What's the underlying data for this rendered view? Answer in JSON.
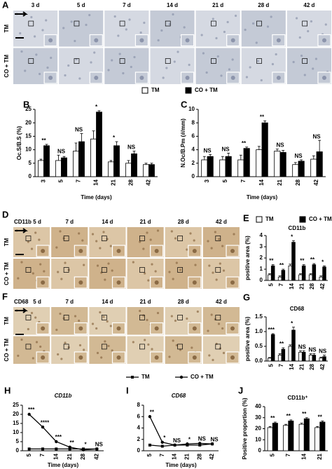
{
  "image_panels": [
    {
      "letter": "A",
      "columns": [
        "3 d",
        "5 d",
        "7 d",
        "14 d",
        "21 d",
        "28 d",
        "42 d"
      ],
      "rows": [
        "TM",
        "CO + TM"
      ]
    },
    {
      "letter": "D",
      "marker": "CD11b",
      "columns": [
        "5 d",
        "7 d",
        "14 d",
        "21 d",
        "28 d",
        "42 d"
      ],
      "rows": [
        "TM",
        "CO + TM"
      ]
    },
    {
      "letter": "F",
      "marker": "CD68",
      "columns": [
        "5 d",
        "7 d",
        "14 d",
        "21 d",
        "28 d",
        "42 d"
      ],
      "rows": [
        "TM",
        "CO + TM"
      ]
    }
  ],
  "chart_data": [
    {
      "type": "bar",
      "letter": "B",
      "y_label": "Oc.S/B.S (%)",
      "x_label": "Time (days)",
      "categories": [
        "3",
        "5",
        "7",
        "14",
        "21",
        "28",
        "42"
      ],
      "series": [
        {
          "name": "TM",
          "color": "#ffffff",
          "values": [
            6,
            6,
            9.5,
            14,
            5.5,
            5,
            4.5
          ],
          "errors": [
            0.5,
            2,
            3,
            3,
            0.5,
            1,
            0.5
          ]
        },
        {
          "name": "CO + TM",
          "color": "#000000",
          "values": [
            11.5,
            7,
            13,
            24,
            11.5,
            8.5,
            4.5
          ],
          "errors": [
            0.5,
            0.5,
            3,
            0.5,
            1.5,
            1,
            0.5
          ]
        }
      ],
      "annotations": [
        "**",
        "NS",
        "NS",
        "*",
        "*",
        "NS",
        null
      ],
      "ylim": [
        0,
        25
      ],
      "yticks": [
        0,
        5,
        10,
        15,
        20,
        25
      ]
    },
    {
      "type": "bar",
      "letter": "C",
      "y_label": "N.Oc/B.Pm (#/mm)",
      "x_label": "Time (days)",
      "categories": [
        "3",
        "5",
        "7",
        "14",
        "21",
        "28",
        "42"
      ],
      "series": [
        {
          "name": "TM",
          "color": "#ffffff",
          "values": [
            2.5,
            2.5,
            2.5,
            4,
            3.8,
            1.8,
            2.6
          ],
          "errors": [
            0.5,
            0.5,
            0.7,
            0.5,
            0.3,
            0.3,
            0.5
          ]
        },
        {
          "name": "CO + TM",
          "color": "#000000",
          "values": [
            3,
            3,
            4.2,
            8,
            3.6,
            2.3,
            3.7
          ],
          "errors": [
            0.3,
            0.5,
            0.2,
            0.3,
            0.3,
            0.2,
            1.7
          ]
        }
      ],
      "annotations": [
        "NS",
        "NS",
        "**",
        "**",
        "NS",
        "NS",
        "NS"
      ],
      "ylim": [
        0,
        10
      ],
      "yticks": [
        0,
        2,
        4,
        6,
        8,
        10
      ]
    },
    {
      "type": "bar",
      "letter": "E",
      "title": "CD11b",
      "y_label": "positive area (%)",
      "categories": [
        "5",
        "7",
        "14",
        "21",
        "28",
        "42"
      ],
      "series": [
        {
          "name": "TM",
          "color": "#ffffff",
          "values": [
            0.5,
            0.3,
            1.3,
            0.5,
            0.5,
            0.3
          ],
          "errors": [
            0.1,
            0.1,
            0.15,
            0.1,
            0.1,
            0.1
          ]
        },
        {
          "name": "CO + TM",
          "color": "#000000",
          "values": [
            1.3,
            0.9,
            3.4,
            1.3,
            1.4,
            1.2
          ],
          "errors": [
            0.1,
            0.1,
            0.15,
            0.1,
            0.1,
            0.1
          ]
        }
      ],
      "annotations": [
        "**",
        "**",
        "*",
        "**",
        "**",
        "*"
      ],
      "ylim": [
        0,
        4
      ],
      "yticks": [
        0,
        1,
        2,
        3,
        4
      ]
    },
    {
      "type": "bar",
      "letter": "G",
      "title": "CD68",
      "y_label": "positive area (%)",
      "categories": [
        "5",
        "7",
        "14",
        "21",
        "28",
        "42"
      ],
      "series": [
        {
          "name": "TM",
          "color": "#ffffff",
          "values": [
            0.1,
            0.2,
            0.5,
            0.3,
            0.2,
            0.1
          ],
          "errors": [
            0.02,
            0.05,
            0.05,
            0.05,
            0.05,
            0.03
          ]
        },
        {
          "name": "CO + TM",
          "color": "#000000",
          "values": [
            0.9,
            0.4,
            1.05,
            0.3,
            0.2,
            0.15
          ],
          "errors": [
            0.03,
            0.05,
            0.1,
            0.05,
            0.05,
            0.05
          ]
        }
      ],
      "annotations": [
        "***",
        "**",
        "*",
        "NS",
        "NS",
        "NS"
      ],
      "ylim": [
        0,
        1.5
      ],
      "yticks": [
        {
          "value": 0,
          "label": "0.0"
        },
        {
          "value": 0.5,
          "label": "0.5"
        },
        {
          "value": 1,
          "label": "1.0"
        },
        {
          "value": 1.5,
          "label": "1.5"
        }
      ]
    },
    {
      "type": "line",
      "letter": "H",
      "title": "CD11b",
      "x_label": "Time (days)",
      "categories": [
        "5",
        "7",
        "14",
        "21",
        "28",
        "42"
      ],
      "series": [
        {
          "name": "TM",
          "color": "#000000",
          "values": [
            1,
            1,
            1,
            1,
            1,
            1
          ]
        },
        {
          "name": "CO + TM",
          "color": "#000000",
          "values": [
            20,
            13,
            5,
            2,
            0.5,
            1
          ]
        }
      ],
      "annotations": [
        "***",
        "****",
        "***",
        "**",
        "*",
        "NS"
      ],
      "ylim": [
        0,
        25
      ],
      "yticks": [
        0,
        5,
        10,
        15,
        20,
        25
      ]
    },
    {
      "type": "line",
      "letter": "I",
      "title": "CD68",
      "x_label": "Time (days)",
      "categories": [
        "5",
        "7",
        "14",
        "21",
        "28",
        "42"
      ],
      "series": [
        {
          "name": "TM",
          "color": "#000000",
          "values": [
            1,
            0.8,
            1,
            1,
            1,
            1.2
          ]
        },
        {
          "name": "CO + TM",
          "color": "#000000",
          "values": [
            6,
            1.5,
            1,
            1.2,
            1.3,
            1.2
          ]
        }
      ],
      "annotations": [
        "**",
        "*",
        "NS",
        "*",
        "NS",
        "NS"
      ],
      "ylim": [
        0,
        8
      ],
      "yticks": [
        0,
        2,
        4,
        6,
        8
      ]
    },
    {
      "type": "bar",
      "letter": "J",
      "title": "CD11b⁺",
      "y_label": "Positive proportion (%)",
      "categories": [
        "5",
        "7",
        "14",
        "21"
      ],
      "series": [
        {
          "name": "TM",
          "color": "#ffffff",
          "values": [
            21,
            23,
            24,
            21
          ],
          "errors": [
            1,
            1,
            1,
            1
          ]
        },
        {
          "name": "CO + TM",
          "color": "#000000",
          "values": [
            25,
            27,
            29,
            26
          ],
          "errors": [
            1,
            1,
            1,
            1
          ]
        }
      ],
      "annotations": [
        "**",
        "**",
        "**",
        "**"
      ],
      "ylim": [
        0,
        40
      ],
      "yticks": [
        0,
        10,
        20,
        30,
        40
      ]
    }
  ]
}
